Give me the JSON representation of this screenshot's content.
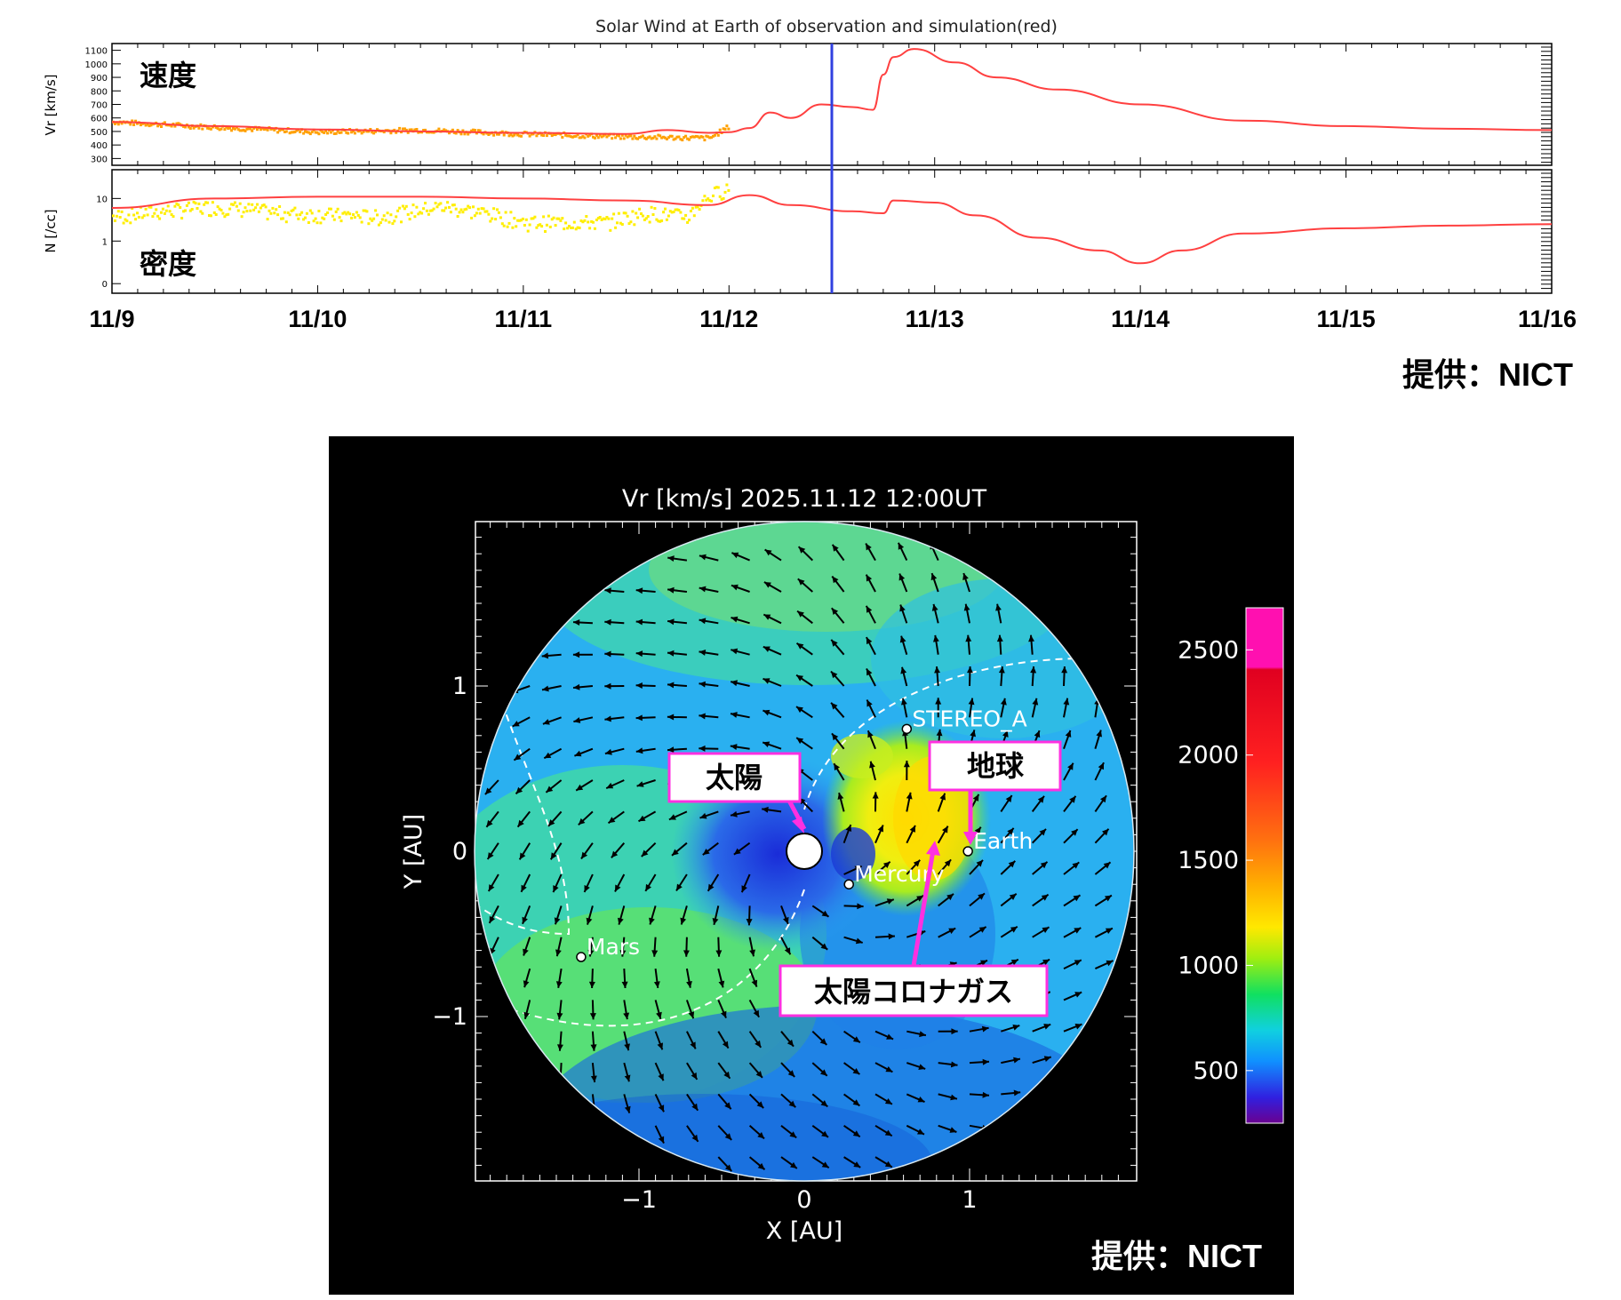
{
  "timeseries": {
    "title": "Solar Wind at Earth of observation and simulation(red)",
    "credit": "提供：NICT",
    "date_labels": [
      "11/9",
      "11/10",
      "11/11",
      "11/12",
      "11/13",
      "11/14",
      "11/15",
      "11/16"
    ],
    "current_time": "11/12 12:00",
    "colors": {
      "simulation": "#ff4040",
      "obs_speed": "#ffa000",
      "obs_density": "#ffee00",
      "marker": "#3040e0"
    }
  },
  "map": {
    "title": "Vr [km/s] 2025.11.12 12:00UT",
    "xlabel": "X  [AU]",
    "ylabel": "Y  [AU]",
    "credit": "提供：NICT",
    "x_ticks": [
      "−1",
      "0",
      "1"
    ],
    "y_ticks": [
      "1",
      "0",
      "−1"
    ],
    "bodies": [
      "STEREO_A",
      "Earth",
      "Mercury",
      "Mars"
    ],
    "colorbar_ticks": [
      "2500",
      "2000",
      "1500",
      "1000",
      "500"
    ]
  },
  "chart_data": [
    {
      "type": "line",
      "panel": "speed",
      "title": "Solar Wind at Earth of observation and simulation(red)",
      "panel_label": "速度",
      "ylabel": "Vr [km/s]",
      "yticks": [
        "1100",
        "1000",
        "900",
        "800",
        "700",
        "600",
        "500",
        "400",
        "300"
      ],
      "ylim": [
        250,
        1150
      ],
      "xlim": [
        "11/9",
        "11/16"
      ],
      "series": [
        {
          "values_x_days": [
            0,
            0.5,
            1,
            1.5,
            2,
            2.5,
            2.7,
            2.9,
            3.0,
            3.1,
            3.2,
            3.3,
            3.45,
            3.6,
            3.7,
            3.75,
            3.8,
            3.9,
            4.1,
            4.3,
            4.6,
            5.0,
            5.5,
            6.0,
            6.5,
            7.0
          ],
          "values_y": [
            570,
            540,
            515,
            500,
            490,
            482,
            510,
            490,
            495,
            525,
            640,
            600,
            700,
            680,
            660,
            920,
            1050,
            1110,
            1010,
            900,
            810,
            700,
            580,
            540,
            520,
            510
          ]
        },
        {
          "values_x_days": [
            0,
            0.5,
            1,
            1.5,
            2,
            2.5,
            2.9,
            3.0
          ],
          "values_y": [
            580,
            540,
            505,
            520,
            490,
            470,
            460,
            550
          ]
        }
      ]
    },
    {
      "type": "line",
      "panel": "density",
      "panel_label": "密度",
      "ylabel": "N [/cc]",
      "yticks": [
        "10",
        "1",
        "0"
      ],
      "xlim": [
        "11/9",
        "11/16"
      ],
      "series": [
        {
          "values_x_days": [
            0,
            0.5,
            1,
            1.5,
            2,
            2.5,
            2.9,
            3.1,
            3.3,
            3.6,
            3.75,
            3.8,
            4.0,
            4.2,
            4.5,
            4.8,
            5.0,
            5.2,
            5.5,
            6.0,
            6.5,
            7.0
          ],
          "values_y": [
            6,
            10,
            11,
            11,
            10,
            9,
            7,
            12,
            7,
            5,
            4.5,
            9,
            8,
            4,
            1.2,
            0.6,
            0.3,
            0.6,
            1.5,
            2,
            2.3,
            2.5
          ]
        },
        {
          "values_x_days": [
            0,
            0.5,
            0.8,
            1.3,
            1.6,
            2.0,
            2.4,
            2.6,
            2.8,
            3.0
          ],
          "values_y": [
            4,
            7,
            5,
            4,
            7,
            3,
            3,
            5,
            4,
            20
          ]
        }
      ]
    },
    {
      "type": "heatmap",
      "title": "Vr [km/s] 2025.11.12 12:00UT",
      "xlabel": "X  [AU]",
      "ylabel": "Y  [AU]",
      "xlim": [
        -2,
        2
      ],
      "ylim": [
        -2,
        2
      ],
      "colorbar_range": [
        250,
        2700
      ],
      "points": [
        {
          "name": "STEREO_A",
          "x": 0.62,
          "y": 0.74
        },
        {
          "name": "Earth",
          "x": 0.99,
          "y": 0.0
        },
        {
          "name": "Mercury",
          "x": 0.27,
          "y": -0.2
        },
        {
          "name": "Mars",
          "x": -1.35,
          "y": -0.64
        }
      ]
    }
  ],
  "annotations": [
    {
      "label": "太陽",
      "target": "Sun"
    },
    {
      "label": "地球",
      "target": "Earth"
    },
    {
      "label": "太陽コロナガス",
      "target": "CME"
    }
  ]
}
